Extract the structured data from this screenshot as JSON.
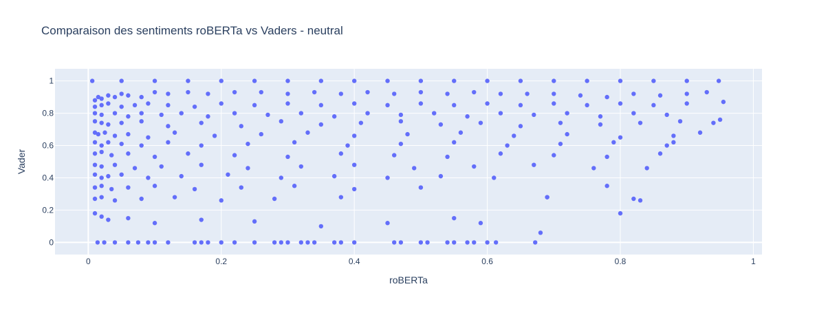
{
  "chart_data": {
    "type": "scatter",
    "title": "Comparaison des sentiments roBERTa vs Vaders - neutral",
    "xlabel": "roBERTa",
    "ylabel": "Vader",
    "xlim": [
      -0.05,
      1.013
    ],
    "ylim": [
      -0.075,
      1.075
    ],
    "x_ticks": [
      0,
      0.2,
      0.4,
      0.6,
      0.8,
      1
    ],
    "x_tick_labels": [
      "0",
      "0.2",
      "0.4",
      "0.6",
      "0.8",
      "1"
    ],
    "y_ticks": [
      0,
      0.2,
      0.4,
      0.6,
      0.8,
      1
    ],
    "y_tick_labels": [
      "0",
      "0.2",
      "0.4",
      "0.6",
      "0.8",
      "1"
    ],
    "grid": true,
    "legend": "none",
    "marker_color": "#636efa",
    "plot_bgcolor": "#e5ecf6",
    "series": [
      {
        "x": [
          0.006,
          0.05,
          0.1,
          0.15,
          0.2,
          0.25,
          0.3,
          0.35,
          0.4,
          0.45,
          0.5,
          0.55,
          0.6,
          0.65,
          0.7,
          0.75,
          0.8,
          0.85,
          0.9,
          0.948,
          0.014,
          0.024,
          0.04,
          0.06,
          0.075,
          0.09,
          0.1,
          0.12,
          0.16,
          0.17,
          0.18,
          0.2,
          0.22,
          0.25,
          0.28,
          0.29,
          0.3,
          0.32,
          0.33,
          0.34,
          0.37,
          0.38,
          0.4,
          0.46,
          0.47,
          0.5,
          0.51,
          0.54,
          0.55,
          0.57,
          0.58,
          0.6,
          0.613,
          0.672,
          0.01,
          0.015,
          0.02,
          0.03,
          0.04,
          0.05,
          0.06,
          0.08,
          0.1,
          0.12,
          0.15,
          0.18,
          0.22,
          0.26,
          0.3,
          0.34,
          0.38,
          0.42,
          0.46,
          0.5,
          0.54,
          0.58,
          0.62,
          0.66,
          0.7,
          0.74,
          0.78,
          0.82,
          0.86,
          0.9,
          0.93,
          0.955,
          0.01,
          0.02,
          0.03,
          0.05,
          0.07,
          0.09,
          0.12,
          0.16,
          0.2,
          0.25,
          0.3,
          0.35,
          0.4,
          0.45,
          0.5,
          0.55,
          0.6,
          0.65,
          0.7,
          0.75,
          0.8,
          0.85,
          0.9,
          0.94,
          0.01,
          0.02,
          0.04,
          0.06,
          0.08,
          0.11,
          0.14,
          0.18,
          0.22,
          0.27,
          0.32,
          0.37,
          0.42,
          0.47,
          0.52,
          0.57,
          0.62,
          0.67,
          0.72,
          0.77,
          0.82,
          0.87,
          0.92,
          0.01,
          0.02,
          0.03,
          0.05,
          0.08,
          0.12,
          0.17,
          0.23,
          0.29,
          0.35,
          0.41,
          0.47,
          0.53,
          0.59,
          0.65,
          0.71,
          0.77,
          0.83,
          0.89,
          0.95,
          0.01,
          0.015,
          0.025,
          0.04,
          0.06,
          0.09,
          0.13,
          0.19,
          0.26,
          0.33,
          0.4,
          0.48,
          0.56,
          0.64,
          0.72,
          0.8,
          0.88,
          0.01,
          0.02,
          0.03,
          0.05,
          0.08,
          0.12,
          0.17,
          0.24,
          0.31,
          0.39,
          0.47,
          0.55,
          0.63,
          0.71,
          0.79,
          0.87,
          0.01,
          0.02,
          0.035,
          0.06,
          0.1,
          0.15,
          0.22,
          0.3,
          0.38,
          0.46,
          0.54,
          0.62,
          0.7,
          0.78,
          0.86,
          0.01,
          0.02,
          0.04,
          0.07,
          0.11,
          0.17,
          0.24,
          0.32,
          0.4,
          0.49,
          0.58,
          0.67,
          0.76,
          0.84,
          0.01,
          0.02,
          0.03,
          0.05,
          0.09,
          0.14,
          0.21,
          0.29,
          0.37,
          0.45,
          0.53,
          0.61,
          0.01,
          0.02,
          0.035,
          0.06,
          0.1,
          0.16,
          0.23,
          0.31,
          0.4,
          0.5,
          0.01,
          0.02,
          0.04,
          0.08,
          0.13,
          0.2,
          0.28,
          0.38,
          0.01,
          0.02,
          0.03,
          0.06,
          0.1,
          0.17,
          0.25,
          0.35,
          0.45,
          0.55,
          0.59,
          0.68,
          0.69,
          0.69,
          0.78,
          0.8,
          0.82,
          0.83,
          0.88
        ],
        "y": [
          1,
          1,
          1,
          1,
          1,
          1,
          1,
          1,
          1,
          1,
          1,
          1,
          1,
          1,
          1,
          1,
          1,
          1,
          1,
          1,
          0,
          0,
          0,
          0,
          0,
          0,
          0,
          0,
          0,
          0,
          0,
          0,
          0,
          0,
          0,
          0,
          0,
          0,
          0,
          0,
          0,
          0,
          0,
          0,
          0,
          0,
          0,
          0,
          0,
          0,
          0,
          0,
          0,
          0,
          0.88,
          0.9,
          0.89,
          0.91,
          0.9,
          0.92,
          0.91,
          0.9,
          0.93,
          0.92,
          0.93,
          0.92,
          0.93,
          0.93,
          0.92,
          0.93,
          0.92,
          0.93,
          0.92,
          0.93,
          0.92,
          0.93,
          0.92,
          0.92,
          0.92,
          0.91,
          0.9,
          0.92,
          0.91,
          0.92,
          0.93,
          0.87,
          0.84,
          0.85,
          0.86,
          0.84,
          0.85,
          0.86,
          0.85,
          0.84,
          0.86,
          0.85,
          0.86,
          0.85,
          0.86,
          0.85,
          0.86,
          0.85,
          0.86,
          0.85,
          0.86,
          0.85,
          0.86,
          0.85,
          0.86,
          0.74,
          0.8,
          0.79,
          0.8,
          0.78,
          0.8,
          0.79,
          0.8,
          0.78,
          0.8,
          0.79,
          0.8,
          0.78,
          0.8,
          0.79,
          0.8,
          0.78,
          0.8,
          0.79,
          0.8,
          0.78,
          0.8,
          0.79,
          0.68,
          0.75,
          0.74,
          0.73,
          0.74,
          0.75,
          0.72,
          0.74,
          0.72,
          0.75,
          0.73,
          0.74,
          0.75,
          0.73,
          0.74,
          0.72,
          0.74,
          0.73,
          0.74,
          0.75,
          0.76,
          0.68,
          0.67,
          0.68,
          0.66,
          0.67,
          0.65,
          0.68,
          0.66,
          0.67,
          0.68,
          0.66,
          0.67,
          0.68,
          0.66,
          0.67,
          0.65,
          0.66,
          0.62,
          0.6,
          0.62,
          0.61,
          0.6,
          0.62,
          0.6,
          0.61,
          0.62,
          0.6,
          0.61,
          0.62,
          0.6,
          0.61,
          0.62,
          0.6,
          0.55,
          0.56,
          0.54,
          0.55,
          0.53,
          0.55,
          0.54,
          0.53,
          0.55,
          0.54,
          0.53,
          0.55,
          0.54,
          0.53,
          0.55,
          0.48,
          0.47,
          0.48,
          0.46,
          0.47,
          0.48,
          0.46,
          0.47,
          0.48,
          0.46,
          0.47,
          0.48,
          0.46,
          0.46,
          0.42,
          0.4,
          0.41,
          0.42,
          0.4,
          0.41,
          0.42,
          0.4,
          0.41,
          0.4,
          0.41,
          0.4,
          0.34,
          0.35,
          0.33,
          0.34,
          0.35,
          0.33,
          0.34,
          0.35,
          0.33,
          0.34,
          0.27,
          0.28,
          0.26,
          0.27,
          0.28,
          0.26,
          0.27,
          0.28,
          0.18,
          0.16,
          0.14,
          0.15,
          0.12,
          0.14,
          0.13,
          0.1,
          0.12,
          0.15,
          0.12,
          0.06,
          0.28,
          0.28,
          0.35,
          0.18,
          0.27,
          0.26,
          0.62
        ]
      }
    ]
  }
}
